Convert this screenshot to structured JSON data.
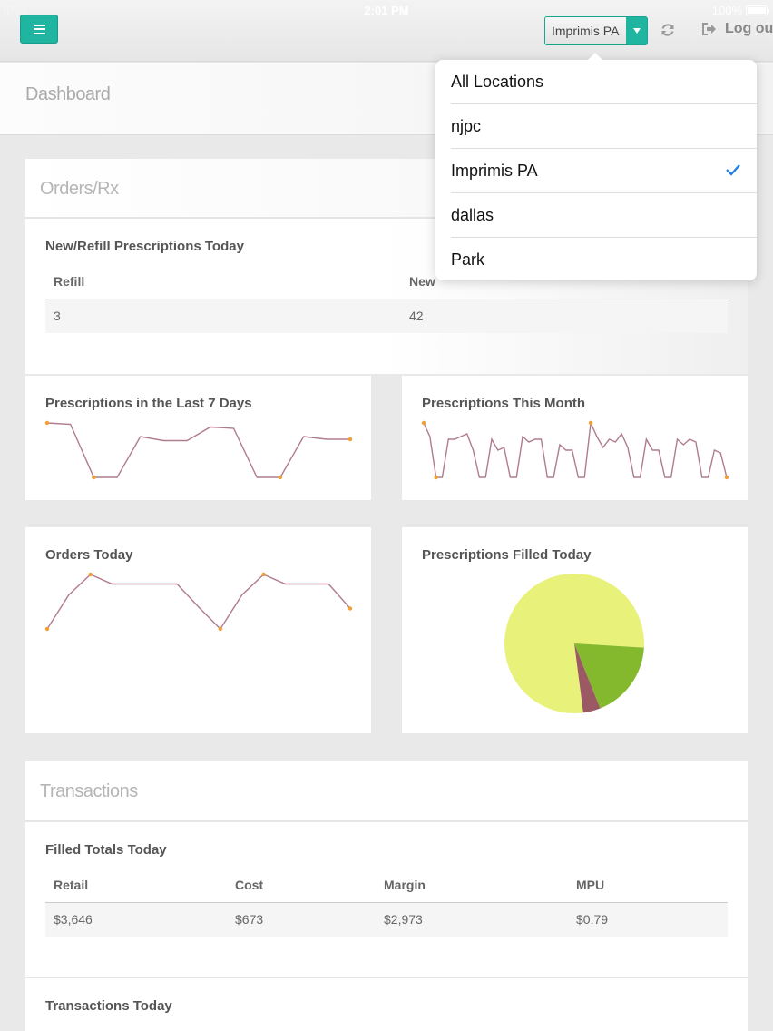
{
  "status_bar": {
    "carrier": "iPad",
    "time": "2:01 PM",
    "battery": "100%"
  },
  "topnav": {
    "menu_icon": "hamburger-menu-icon",
    "location_select": {
      "value": "Imprimis PA"
    },
    "refresh_icon": "refresh-icon",
    "logout": {
      "icon": "logout-icon",
      "label": "Log ou"
    },
    "accent_color": "#1fb5a0"
  },
  "page": {
    "title": "Dashboard"
  },
  "orders_panel": {
    "title": "Orders/Rx",
    "new_refill": {
      "title": "New/Refill Prescriptions Today",
      "columns": [
        "Refill",
        "New"
      ],
      "row": [
        "3",
        "42"
      ]
    },
    "last7": {
      "title": "Prescriptions in the Last 7 Days"
    },
    "this_month": {
      "title": "Prescriptions This Month"
    },
    "orders_today": {
      "title": "Orders Today"
    },
    "filled_today": {
      "title": "Prescriptions Filled Today"
    }
  },
  "transactions_panel": {
    "title": "Transactions",
    "filled_totals": {
      "title": "Filled Totals Today",
      "columns": [
        "Retail",
        "Cost",
        "Margin",
        "MPU"
      ],
      "row": [
        "$3,646",
        "$673",
        "$2,973",
        "$0.79"
      ]
    },
    "transactions_today": {
      "title": "Transactions Today"
    }
  },
  "location_dropdown": {
    "items": [
      {
        "label": "All Locations",
        "selected": false
      },
      {
        "label": "njpc",
        "selected": false
      },
      {
        "label": "Imprimis PA",
        "selected": true
      },
      {
        "label": "dallas",
        "selected": false
      },
      {
        "label": "Park",
        "selected": false
      }
    ],
    "check_color": "#1a7fe0"
  },
  "chart_data": [
    {
      "type": "line",
      "title": "Prescriptions in the Last 7 Days",
      "series": [
        {
          "values": [
            6,
            5.9,
            2,
            2,
            5,
            4.7,
            4.7,
            5.7,
            5.6,
            2,
            2,
            5,
            4.8,
            4.8
          ]
        }
      ],
      "ylim": [
        0,
        7
      ],
      "line_color": "#b07b8f",
      "marker_color": "#f0a030"
    },
    {
      "type": "line",
      "title": "Prescriptions This Month",
      "series": [
        {
          "values": [
            6,
            5,
            2,
            2,
            4.8,
            4.8,
            5,
            5.2,
            4,
            2,
            2,
            4.8,
            4,
            4.2,
            2,
            2,
            5,
            4.6,
            4.8,
            4.8,
            2,
            2,
            4.4,
            4,
            4,
            2,
            2,
            6,
            5,
            4.2,
            4.8,
            4.6,
            5.2,
            4.2,
            2,
            2,
            4.8,
            4,
            4,
            2,
            2,
            4.8,
            4.4,
            4.8,
            4.6,
            2,
            2,
            4,
            3.8,
            2
          ]
        }
      ],
      "ylim": [
        0,
        7
      ],
      "line_color": "#b07b8f",
      "marker_color": "#f0a030"
    },
    {
      "type": "line",
      "title": "Orders Today",
      "series": [
        {
          "values": [
            2,
            4.5,
            6,
            5.3,
            5.3,
            5.3,
            5.3,
            3.6,
            2,
            4.5,
            6,
            5.3,
            5.3,
            5.3,
            3.5
          ]
        }
      ],
      "ylim": [
        0,
        7
      ],
      "line_color": "#b07b8f",
      "marker_color": "#f0a030"
    },
    {
      "type": "pie",
      "title": "Prescriptions Filled Today",
      "series": [
        {
          "values": [
            78,
            18,
            4
          ]
        }
      ],
      "colors": [
        "#e8f27a",
        "#84b92e",
        "#9b5a63"
      ]
    }
  ]
}
